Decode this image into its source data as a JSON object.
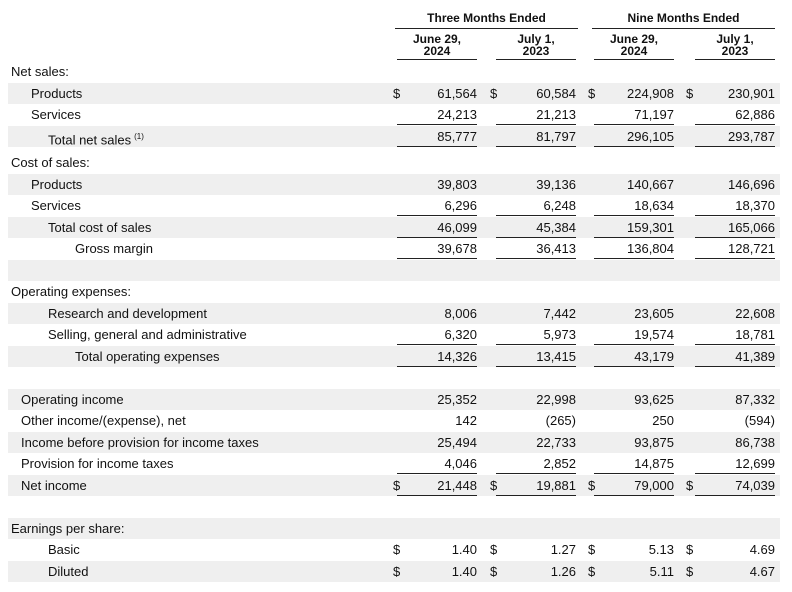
{
  "header": {
    "groups": [
      "Three Months Ended",
      "Nine Months Ended"
    ],
    "columns": [
      [
        "June 29,",
        "2024"
      ],
      [
        "July 1,",
        "2023"
      ],
      [
        "June 29,",
        "2024"
      ],
      [
        "July 1,",
        "2023"
      ]
    ]
  },
  "sections": [
    {
      "heading": "Net sales:",
      "rows": [
        {
          "label": "Products",
          "cells": [
            {
              "sign": "$",
              "value": "61,564"
            },
            {
              "sign": "$",
              "value": "60,584"
            },
            {
              "sign": "$",
              "value": "224,908"
            },
            {
              "sign": "$",
              "value": "230,901"
            }
          ]
        },
        {
          "label": "Services",
          "cells": [
            {
              "value": "24,213"
            },
            {
              "value": "21,213"
            },
            {
              "value": "71,197"
            },
            {
              "value": "62,886"
            }
          ]
        },
        {
          "label": "Total net sales",
          "note": "(1)",
          "cells": [
            {
              "value": "85,777"
            },
            {
              "value": "81,797"
            },
            {
              "value": "296,105"
            },
            {
              "value": "293,787"
            }
          ]
        }
      ]
    },
    {
      "heading": "Cost of sales:",
      "rows": [
        {
          "label": "Products",
          "cells": [
            {
              "value": "39,803"
            },
            {
              "value": "39,136"
            },
            {
              "value": "140,667"
            },
            {
              "value": "146,696"
            }
          ]
        },
        {
          "label": "Services",
          "cells": [
            {
              "value": "6,296"
            },
            {
              "value": "6,248"
            },
            {
              "value": "18,634"
            },
            {
              "value": "18,370"
            }
          ]
        },
        {
          "label": "Total cost of sales",
          "cells": [
            {
              "value": "46,099"
            },
            {
              "value": "45,384"
            },
            {
              "value": "159,301"
            },
            {
              "value": "165,066"
            }
          ]
        },
        {
          "label": "Gross margin",
          "cells": [
            {
              "value": "39,678"
            },
            {
              "value": "36,413"
            },
            {
              "value": "136,804"
            },
            {
              "value": "128,721"
            }
          ]
        }
      ]
    },
    {
      "heading": "Operating expenses:",
      "rows": [
        {
          "label": "Research and development",
          "cells": [
            {
              "value": "8,006"
            },
            {
              "value": "7,442"
            },
            {
              "value": "23,605"
            },
            {
              "value": "22,608"
            }
          ]
        },
        {
          "label": "Selling, general and administrative",
          "cells": [
            {
              "value": "6,320"
            },
            {
              "value": "5,973"
            },
            {
              "value": "19,574"
            },
            {
              "value": "18,781"
            }
          ]
        },
        {
          "label": "Total operating expenses",
          "cells": [
            {
              "value": "14,326"
            },
            {
              "value": "13,415"
            },
            {
              "value": "43,179"
            },
            {
              "value": "41,389"
            }
          ]
        }
      ]
    },
    {
      "rows": [
        {
          "label": "Operating income",
          "cells": [
            {
              "value": "25,352"
            },
            {
              "value": "22,998"
            },
            {
              "value": "93,625"
            },
            {
              "value": "87,332"
            }
          ]
        },
        {
          "label": "Other income/(expense), net",
          "cells": [
            {
              "value": "142"
            },
            {
              "value": "(265)"
            },
            {
              "value": "250"
            },
            {
              "value": "(594)"
            }
          ]
        },
        {
          "label": "Income before provision for income taxes",
          "cells": [
            {
              "value": "25,494"
            },
            {
              "value": "22,733"
            },
            {
              "value": "93,875"
            },
            {
              "value": "86,738"
            }
          ]
        },
        {
          "label": "Provision for income taxes",
          "cells": [
            {
              "value": "4,046"
            },
            {
              "value": "2,852"
            },
            {
              "value": "14,875"
            },
            {
              "value": "12,699"
            }
          ]
        },
        {
          "label": "Net income",
          "cells": [
            {
              "sign": "$",
              "value": "21,448"
            },
            {
              "sign": "$",
              "value": "19,881"
            },
            {
              "sign": "$",
              "value": "79,000"
            },
            {
              "sign": "$",
              "value": "74,039"
            }
          ]
        }
      ]
    },
    {
      "heading": "Earnings per share:",
      "rows": [
        {
          "label": "Basic",
          "cells": [
            {
              "sign": "$",
              "value": "1.40"
            },
            {
              "sign": "$",
              "value": "1.27"
            },
            {
              "sign": "$",
              "value": "5.13"
            },
            {
              "sign": "$",
              "value": "4.69"
            }
          ]
        },
        {
          "label": "Diluted",
          "cells": [
            {
              "sign": "$",
              "value": "1.40"
            },
            {
              "sign": "$",
              "value": "1.26"
            },
            {
              "sign": "$",
              "value": "5.11"
            },
            {
              "sign": "$",
              "value": "4.67"
            }
          ]
        }
      ]
    }
  ]
}
